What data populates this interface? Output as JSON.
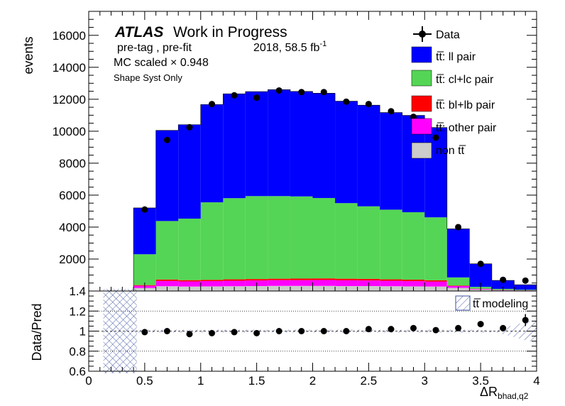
{
  "chart_data": [
    {
      "type": "area",
      "panel": "main",
      "stacked": true,
      "xlim": [
        0,
        4
      ],
      "ylim": [
        0,
        17500
      ],
      "ylabel": "events",
      "ytick_labels": [
        "2000",
        "4000",
        "6000",
        "8000",
        "10000",
        "12000",
        "14000",
        "16000"
      ],
      "yticks": [
        2000,
        4000,
        6000,
        8000,
        10000,
        12000,
        14000,
        16000
      ],
      "bin_edges": [
        0.4,
        0.6,
        0.8,
        1.0,
        1.2,
        1.4,
        1.6,
        1.8,
        2.0,
        2.2,
        2.4,
        2.6,
        2.8,
        3.0,
        3.2,
        3.4,
        3.6,
        3.8,
        4.0
      ],
      "series": [
        {
          "name": "non tt̅",
          "key": "nontt",
          "color": "#cccccc",
          "values": [
            190,
            300,
            280,
            290,
            300,
            310,
            320,
            320,
            320,
            310,
            310,
            300,
            290,
            280,
            200,
            90,
            40,
            25
          ]
        },
        {
          "name": "tt̅: other pair",
          "key": "other",
          "color": "#ff00ff",
          "values": [
            140,
            330,
            320,
            330,
            340,
            350,
            360,
            360,
            370,
            360,
            350,
            340,
            330,
            310,
            110,
            40,
            20,
            10
          ]
        },
        {
          "name": "tt̅: bl+lb pair",
          "key": "bllb",
          "color": "#ff0000",
          "values": [
            40,
            90,
            80,
            80,
            90,
            90,
            90,
            100,
            100,
            100,
            100,
            90,
            90,
            80,
            30,
            10,
            5,
            5
          ]
        },
        {
          "name": "tt̅: cl+lc pair",
          "key": "cllc",
          "color": "#55d555",
          "values": [
            1930,
            3660,
            3850,
            4850,
            5080,
            5190,
            5170,
            5140,
            5030,
            4730,
            4540,
            4360,
            4220,
            3940,
            510,
            120,
            70,
            40
          ]
        },
        {
          "name": "tt̅: ll pair",
          "key": "ll",
          "color": "#0000ff",
          "values": [
            2900,
            5670,
            5880,
            6120,
            6530,
            6540,
            6660,
            6570,
            6560,
            6380,
            6330,
            6080,
            6060,
            5620,
            3040,
            1440,
            530,
            310
          ]
        }
      ],
      "data": {
        "name": "Data",
        "x": [
          0.5,
          0.7,
          0.9,
          1.1,
          1.3,
          1.5,
          1.7,
          1.9,
          2.1,
          2.3,
          2.5,
          2.7,
          2.9,
          3.1,
          3.3,
          3.5,
          3.7,
          3.9
        ],
        "y": [
          5100,
          9450,
          10250,
          11700,
          12250,
          12100,
          12550,
          12450,
          12450,
          11850,
          11700,
          11250,
          10900,
          9600,
          4000,
          1700,
          700,
          650
        ]
      },
      "annotations": {
        "atlas": "ATLAS",
        "status": "Work in Progress",
        "selection": "pre-tag ,  pre-fit",
        "lumi_prefix": "2018, 58.5 fb",
        "lumi_sup": "-1",
        "mc_scale": "MC scaled × 0.948",
        "syst": "Shape Syst Only"
      },
      "legend_position": "top-right",
      "legend": [
        "Data",
        "tt̅: ll pair",
        "tt̅: cl+lc pair",
        "tt̅: bl+lb pair",
        "tt̅: other pair",
        "non tt̅"
      ]
    },
    {
      "type": "scatter",
      "panel": "ratio",
      "xlim": [
        0,
        4
      ],
      "ylim": [
        0.6,
        1.4
      ],
      "ylabel": "Data/Pred",
      "xlabel": "ΔR",
      "xlabel_sub": "bhad,q2",
      "xtick_labels": [
        "0",
        "0.5",
        "1",
        "1.5",
        "2",
        "2.5",
        "3",
        "3.5",
        "4"
      ],
      "xticks": [
        0,
        0.5,
        1,
        1.5,
        2,
        2.5,
        3,
        3.5,
        4
      ],
      "ytick_labels": [
        "0.6",
        "0.8",
        "1",
        "1.2",
        "1.4"
      ],
      "yticks": [
        0.6,
        0.8,
        1.0,
        1.2,
        1.4
      ],
      "grid_y": [
        0.8,
        1.0,
        1.2
      ],
      "x": [
        0.5,
        0.7,
        0.9,
        1.1,
        1.3,
        1.5,
        1.7,
        1.9,
        2.1,
        2.3,
        2.5,
        2.7,
        2.9,
        3.1,
        3.3,
        3.5,
        3.7,
        3.9
      ],
      "y": [
        0.99,
        1.0,
        0.97,
        0.98,
        0.99,
        0.98,
        1.0,
        1.0,
        1.0,
        1.0,
        1.02,
        1.02,
        1.03,
        1.01,
        1.03,
        1.07,
        1.03,
        1.11
      ],
      "err": [
        0,
        0,
        0,
        0,
        0,
        0,
        0,
        0,
        0,
        0,
        0,
        0,
        0,
        0,
        0,
        0,
        0.03,
        0.06
      ],
      "band_name": "tt̅ modeling",
      "band_half_width": [
        0.42,
        0.42,
        0.02,
        0.02,
        0.02,
        0.02,
        0.02,
        0.02,
        0.02,
        0.02,
        0.02,
        0.02,
        0.02,
        0.02,
        0.02,
        0.02,
        0.02,
        0.02,
        0.1,
        0.1
      ]
    }
  ]
}
